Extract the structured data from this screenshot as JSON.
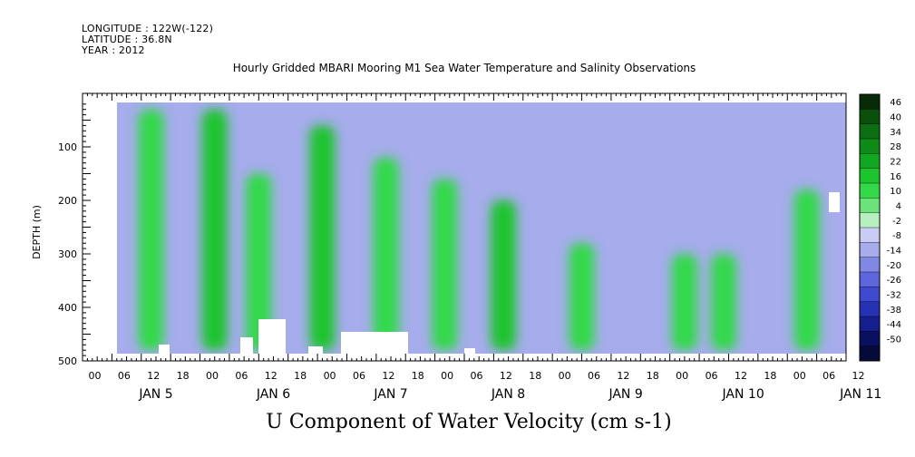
{
  "meta": {
    "longitude": "LONGITUDE : 122W(-122)",
    "latitude": "LATITUDE : 36.8N",
    "year": "YEAR : 2012"
  },
  "chart_data": {
    "type": "heatmap",
    "title": "Hourly Gridded MBARI Mooring M1 Sea Water Temperature and Salinity Observations",
    "xlabel": "U Component of Water Velocity (cm s-1)",
    "ylabel": "DEPTH (m)",
    "y_ticks": [
      "100",
      "200",
      "300",
      "400",
      "500"
    ],
    "y_tick_values": [
      100,
      200,
      300,
      400,
      500
    ],
    "ylim": [
      500,
      0
    ],
    "hour_ticks": [
      "00",
      "06",
      "12",
      "18",
      "00",
      "06",
      "12",
      "18",
      "00",
      "06",
      "12",
      "18",
      "00",
      "06",
      "12",
      "18",
      "00",
      "06",
      "12",
      "18",
      "00",
      "06",
      "12",
      "18",
      "00",
      "06",
      "12"
    ],
    "day_labels": [
      "JAN  5",
      "JAN  6",
      "JAN  7",
      "JAN  8",
      "JAN  9",
      "JAN 10",
      "JAN 11"
    ],
    "colorbar": {
      "labels": [
        "46",
        "40",
        "34",
        "28",
        "22",
        "16",
        "10",
        "4",
        "-2",
        "-8",
        "-14",
        "-20",
        "-26",
        "-32",
        "-38",
        "-44",
        "-50"
      ],
      "values": [
        46,
        40,
        34,
        28,
        22,
        16,
        10,
        4,
        -2,
        -8,
        -14,
        -20,
        -26,
        -32,
        -38,
        -44,
        -50
      ],
      "colors": [
        "#062b06",
        "#0a4f0a",
        "#0c6e12",
        "#0e8a18",
        "#10a822",
        "#1cc42e",
        "#33d948",
        "#6ae47a",
        "#b8efbf",
        "#c9cdf4",
        "#a6acec",
        "#8088e4",
        "#5d66dc",
        "#3f49ce",
        "#2631b4",
        "#141e8c",
        "#0a1060",
        "#060a3a"
      ]
    },
    "bands": [
      {
        "day": 5,
        "hour": 14,
        "depth_from": 30,
        "depth_to": 480,
        "value": 12
      },
      {
        "day": 6,
        "hour": 3,
        "depth_from": 30,
        "depth_to": 480,
        "value": 16
      },
      {
        "day": 6,
        "hour": 12,
        "depth_from": 150,
        "depth_to": 480,
        "value": 14
      },
      {
        "day": 7,
        "hour": 1,
        "depth_from": 60,
        "depth_to": 480,
        "value": 18
      },
      {
        "day": 7,
        "hour": 14,
        "depth_from": 120,
        "depth_to": 480,
        "value": 12
      },
      {
        "day": 8,
        "hour": 2,
        "depth_from": 160,
        "depth_to": 480,
        "value": 14
      },
      {
        "day": 8,
        "hour": 14,
        "depth_from": 200,
        "depth_to": 480,
        "value": 16
      },
      {
        "day": 9,
        "hour": 6,
        "depth_from": 280,
        "depth_to": 480,
        "value": 12
      },
      {
        "day": 10,
        "hour": 3,
        "depth_from": 300,
        "depth_to": 480,
        "value": 10
      },
      {
        "day": 10,
        "hour": 11,
        "depth_from": 300,
        "depth_to": 480,
        "value": 14
      },
      {
        "day": 11,
        "hour": 4,
        "depth_from": 180,
        "depth_to": 480,
        "value": 12
      }
    ]
  }
}
